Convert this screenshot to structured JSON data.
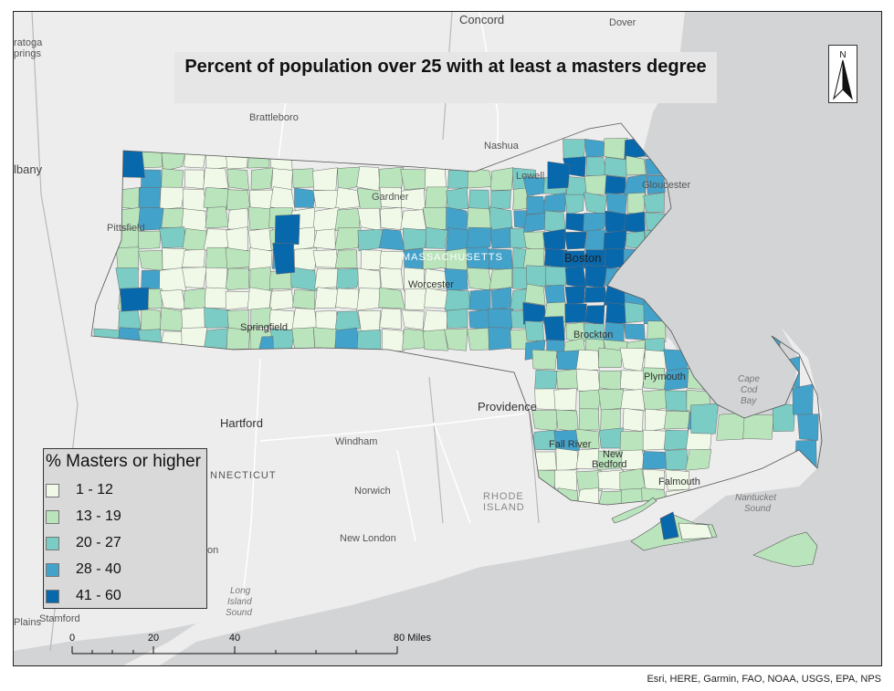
{
  "title": "Percent of population over 25 with at least a masters degree",
  "legend": {
    "title": "% Masters or higher",
    "classes": [
      {
        "label": "1 - 12",
        "color": "#f0f9e8"
      },
      {
        "label": "13 - 19",
        "color": "#bae4bc"
      },
      {
        "label": "20 - 27",
        "color": "#7bccc4"
      },
      {
        "label": "28 - 40",
        "color": "#43a2ca"
      },
      {
        "label": "41 - 60",
        "color": "#0868ac"
      }
    ]
  },
  "north_arrow": {
    "label": "N"
  },
  "scale_bar": {
    "ticks": [
      "0",
      "20",
      "40",
      "80 Miles"
    ]
  },
  "attribution": "Esri, HERE, Garmin, FAO, NOAA, USGS, EPA, NPS",
  "places": {
    "concord": "Concord",
    "dover": "Dover",
    "saratoga": "ratoga",
    "springs": "prings",
    "brattleboro": "Brattleboro",
    "nashua": "Nashua",
    "albany": "lbany",
    "lowell": "Lowell",
    "gloucester": "Gloucester",
    "gardner": "Gardner",
    "pittsfield": "Pittsfield",
    "massachusetts": "MASSACHUSETTS",
    "boston": "Boston",
    "worcester": "Worcester",
    "springfield": "Springfield",
    "brockton": "Brockton",
    "plymouth": "Plymouth",
    "providence": "Providence",
    "hartford": "Hartford",
    "windham": "Windham",
    "connecticut": "NNECTICUT",
    "norwich": "Norwich",
    "rhode": "RHODE",
    "island": "ISLAND",
    "fall_river": "Fall River",
    "new": "New",
    "bedford": "Bedford",
    "falmouth": "Falmouth",
    "new_london": "New London",
    "con": "on",
    "long": "Long",
    "island2": "Island",
    "sound": "Sound",
    "stamford": "Stamford",
    "plains": "Plains",
    "cape": "Cape",
    "cod": "Cod",
    "bay": "Bay",
    "nantucket": "Nantucket",
    "nsound": "Sound"
  }
}
